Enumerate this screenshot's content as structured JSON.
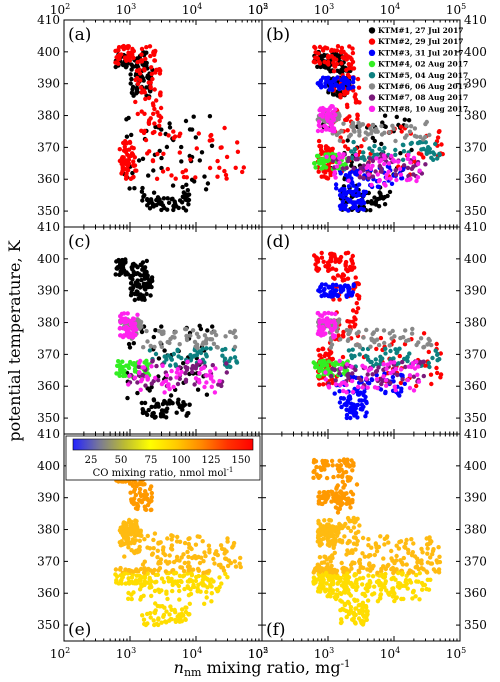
{
  "figure": {
    "ylabel": "potential temperature, K",
    "xlabel_italic": "n",
    "xlabel_sub": "nm",
    "xlabel_rest": " mixing ratio, mg",
    "xlabel_sup": "-1"
  },
  "panels": [
    {
      "tag": "(a)"
    },
    {
      "tag": "(b)"
    },
    {
      "tag": "(c)"
    },
    {
      "tag": "(d)"
    },
    {
      "tag": "(e)"
    },
    {
      "tag": "(f)"
    }
  ],
  "legend": [
    {
      "label": "KTM#1, 27 Jul 2017",
      "color": "#000000"
    },
    {
      "label": "KTM#2, 29 Jul 2017",
      "color": "#ff0000"
    },
    {
      "label": "KTM#3, 31 Jul 2017",
      "color": "#0000ff"
    },
    {
      "label": "KTM#4, 02 Aug 2017",
      "color": "#33ee22"
    },
    {
      "label": "KTM#5, 04 Aug 2017",
      "color": "#0d8080"
    },
    {
      "label": "KTM#6, 06 Aug 2017",
      "color": "#888888"
    },
    {
      "label": "KTM#7, 08 Aug 2017",
      "color": "#7a1a7a"
    },
    {
      "label": "KTM#8, 10 Aug 2017",
      "color": "#ff22ee"
    }
  ],
  "colorbar": {
    "ticks": [
      "25",
      "50",
      "75",
      "100",
      "125",
      "150"
    ],
    "label": "CO mixing ratio, nmol mol",
    "label_sup": "-1",
    "colors": [
      "#2222ff",
      "#777799",
      "#bbbb33",
      "#ffff00",
      "#ffcc00",
      "#ff8800",
      "#ff3300",
      "#ff0000"
    ],
    "range": [
      10,
      160
    ]
  },
  "chart_data": {
    "type": "scatter",
    "x_scale": "log",
    "xlim": [
      100,
      100000
    ],
    "ylim": [
      345,
      410
    ],
    "x_ticks": [
      "10",
      "10",
      "10",
      "10"
    ],
    "x_ticks_exp": [
      "2",
      "3",
      "4",
      "5"
    ],
    "y_ticks": [
      "350",
      "360",
      "370",
      "380",
      "390",
      "400",
      "410"
    ],
    "series": [
      {
        "id": "ktm1",
        "color": "#000000",
        "clusters": [
          {
            "x": [
              600,
              1800
            ],
            "y": [
              395,
              400
            ]
          },
          {
            "x": [
              1000,
              2200
            ],
            "y": [
              386,
              395
            ]
          },
          {
            "x": [
              800,
              20000
            ],
            "y": [
              356,
              380
            ]
          },
          {
            "x": [
              1500,
              8000
            ],
            "y": [
              350,
              356
            ]
          }
        ]
      },
      {
        "id": "ktm2",
        "color": "#ff0000",
        "clusters": [
          {
            "x": [
              600,
              2500
            ],
            "y": [
              396,
              402
            ]
          },
          {
            "x": [
              1200,
              3000
            ],
            "y": [
              375,
              396
            ]
          },
          {
            "x": [
              1000,
              60000
            ],
            "y": [
              360,
              377
            ]
          },
          {
            "x": [
              700,
              1200
            ],
            "y": [
              360,
              372
            ]
          }
        ]
      },
      {
        "id": "ktm3",
        "color": "#0000ff",
        "clusters": [
          {
            "x": [
              700,
              2500
            ],
            "y": [
              388,
              392
            ]
          },
          {
            "x": [
              1200,
              15000
            ],
            "y": [
              357,
              364
            ]
          },
          {
            "x": [
              1500,
              4000
            ],
            "y": [
              350,
              357
            ]
          }
        ]
      },
      {
        "id": "ktm4",
        "color": "#33ee22",
        "clusters": [
          {
            "x": [
              600,
              2000
            ],
            "y": [
              363,
              368
            ]
          }
        ]
      },
      {
        "id": "ktm5",
        "color": "#0d8080",
        "clusters": [
          {
            "x": [
              2000,
              50000
            ],
            "y": [
              366,
              372
            ]
          }
        ]
      },
      {
        "id": "ktm6",
        "color": "#888888",
        "clusters": [
          {
            "x": [
              1000,
              40000
            ],
            "y": [
              372,
              378
            ]
          },
          {
            "x": [
              700,
              1500
            ],
            "y": [
              378,
              381
            ]
          }
        ]
      },
      {
        "id": "ktm7",
        "color": "#7a1a7a",
        "clusters": [
          {
            "x": [
              1000,
              30000
            ],
            "y": [
              360,
              368
            ]
          }
        ]
      },
      {
        "id": "ktm8",
        "color": "#ff22ee",
        "clusters": [
          {
            "x": [
              700,
              1300
            ],
            "y": [
              375,
              383
            ]
          },
          {
            "x": [
              900,
              25000
            ],
            "y": [
              358,
              368
            ]
          }
        ]
      }
    ]
  }
}
